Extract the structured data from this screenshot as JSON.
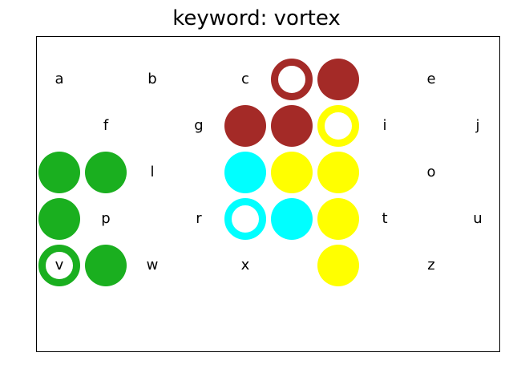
{
  "title": "keyword: vortex",
  "colors": {
    "green": "#1aaf1f",
    "brown": "#a42a27",
    "cyan": "#00ffff",
    "yellow": "#ffff00"
  },
  "grid": {
    "columns": 10,
    "rows": 5,
    "cells": [
      {
        "row": 0,
        "col": 0,
        "letter": "a"
      },
      {
        "row": 0,
        "col": 2,
        "letter": "b"
      },
      {
        "row": 0,
        "col": 4,
        "letter": "c"
      },
      {
        "row": 0,
        "col": 5,
        "style": "ring",
        "color": "brown"
      },
      {
        "row": 0,
        "col": 6,
        "style": "filled",
        "color": "brown"
      },
      {
        "row": 0,
        "col": 8,
        "letter": "e"
      },
      {
        "row": 1,
        "col": 1,
        "letter": "f"
      },
      {
        "row": 1,
        "col": 3,
        "letter": "g"
      },
      {
        "row": 1,
        "col": 4,
        "style": "filled",
        "color": "brown"
      },
      {
        "row": 1,
        "col": 5,
        "style": "filled",
        "color": "brown"
      },
      {
        "row": 1,
        "col": 6,
        "style": "ring",
        "color": "yellow"
      },
      {
        "row": 1,
        "col": 7,
        "letter": "i"
      },
      {
        "row": 1,
        "col": 9,
        "letter": "j"
      },
      {
        "row": 2,
        "col": 0,
        "style": "filled",
        "color": "green"
      },
      {
        "row": 2,
        "col": 1,
        "style": "filled",
        "color": "green"
      },
      {
        "row": 2,
        "col": 2,
        "letter": "l"
      },
      {
        "row": 2,
        "col": 4,
        "style": "filled",
        "color": "cyan"
      },
      {
        "row": 2,
        "col": 5,
        "style": "filled",
        "color": "yellow"
      },
      {
        "row": 2,
        "col": 6,
        "style": "filled",
        "color": "yellow"
      },
      {
        "row": 2,
        "col": 8,
        "letter": "o"
      },
      {
        "row": 3,
        "col": 0,
        "style": "filled",
        "color": "green"
      },
      {
        "row": 3,
        "col": 1,
        "letter": "p"
      },
      {
        "row": 3,
        "col": 3,
        "letter": "r"
      },
      {
        "row": 3,
        "col": 4,
        "style": "ring",
        "color": "cyan"
      },
      {
        "row": 3,
        "col": 5,
        "style": "filled",
        "color": "cyan"
      },
      {
        "row": 3,
        "col": 6,
        "style": "filled",
        "color": "yellow"
      },
      {
        "row": 3,
        "col": 7,
        "letter": "t"
      },
      {
        "row": 3,
        "col": 9,
        "letter": "u"
      },
      {
        "row": 4,
        "col": 0,
        "style": "ring",
        "color": "green",
        "letter": "v"
      },
      {
        "row": 4,
        "col": 1,
        "style": "filled",
        "color": "green"
      },
      {
        "row": 4,
        "col": 2,
        "letter": "w"
      },
      {
        "row": 4,
        "col": 4,
        "letter": "x"
      },
      {
        "row": 4,
        "col": 6,
        "style": "filled",
        "color": "yellow"
      },
      {
        "row": 4,
        "col": 8,
        "letter": "z"
      }
    ]
  }
}
